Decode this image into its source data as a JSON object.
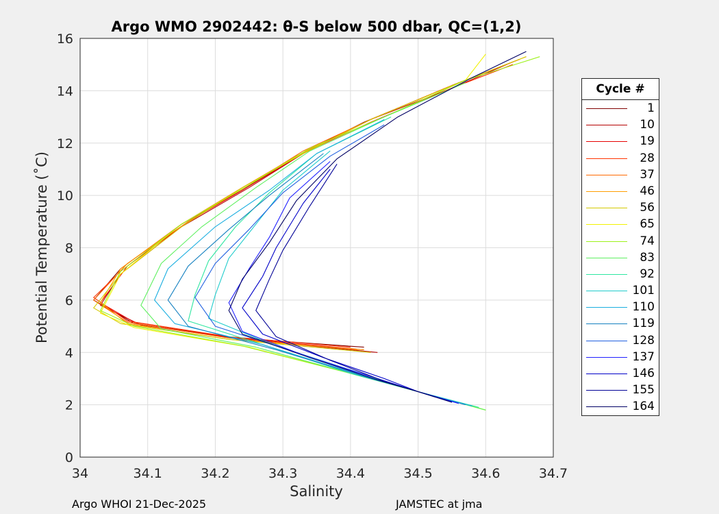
{
  "chart_data": {
    "type": "line",
    "title": "Argo WMO 2902442: θ-S below 500 dbar,  QC=(1,2)",
    "xlabel": "Salinity",
    "ylabel": "Potential Temperature (˚C)",
    "xlim": [
      34,
      34.7
    ],
    "ylim": [
      0,
      16
    ],
    "xticks": [
      "34",
      "34.1",
      "34.2",
      "34.3",
      "34.4",
      "34.5",
      "34.6",
      "34.7"
    ],
    "yticks": [
      "0",
      "2",
      "4",
      "6",
      "8",
      "10",
      "12",
      "14",
      "16"
    ],
    "grid": true,
    "legend_title": "Cycle #",
    "legend_position": "right",
    "series": [
      {
        "name": "1",
        "color": "#800000",
        "points": [
          [
            34.42,
            4.2
          ],
          [
            34.23,
            4.55
          ],
          [
            34.08,
            5.1
          ],
          [
            34.02,
            6.0
          ],
          [
            34.06,
            7.2
          ],
          [
            34.15,
            8.9
          ],
          [
            34.24,
            10.2
          ],
          [
            34.32,
            11.5
          ],
          [
            34.42,
            12.8
          ],
          [
            34.55,
            14.2
          ],
          [
            34.65,
            15.2
          ]
        ]
      },
      {
        "name": "10",
        "color": "#b40000",
        "points": [
          [
            34.44,
            4.0
          ],
          [
            34.24,
            4.5
          ],
          [
            34.09,
            5.05
          ],
          [
            34.03,
            5.8
          ],
          [
            34.06,
            7.0
          ],
          [
            34.15,
            8.8
          ],
          [
            34.25,
            10.3
          ],
          [
            34.33,
            11.6
          ],
          [
            34.43,
            12.9
          ],
          [
            34.55,
            14.1
          ],
          [
            34.64,
            15.1
          ]
        ]
      },
      {
        "name": "19",
        "color": "#e60000",
        "points": [
          [
            34.42,
            4.1
          ],
          [
            34.23,
            4.55
          ],
          [
            34.08,
            5.15
          ],
          [
            34.03,
            5.9
          ],
          [
            34.07,
            7.3
          ],
          [
            34.16,
            9.0
          ],
          [
            34.24,
            10.2
          ],
          [
            34.33,
            11.6
          ],
          [
            34.43,
            12.9
          ],
          [
            34.55,
            14.2
          ],
          [
            34.65,
            15.2
          ]
        ]
      },
      {
        "name": "28",
        "color": "#ff3300",
        "points": [
          [
            34.4,
            4.2
          ],
          [
            34.22,
            4.6
          ],
          [
            34.07,
            5.2
          ],
          [
            34.02,
            6.1
          ],
          [
            34.06,
            7.1
          ],
          [
            34.15,
            8.9
          ],
          [
            34.24,
            10.3
          ],
          [
            34.32,
            11.5
          ],
          [
            34.43,
            12.8
          ],
          [
            34.55,
            14.1
          ],
          [
            34.64,
            15.0
          ]
        ]
      },
      {
        "name": "37",
        "color": "#ff6a00",
        "points": [
          [
            34.41,
            4.1
          ],
          [
            34.22,
            4.55
          ],
          [
            34.07,
            5.15
          ],
          [
            34.02,
            6.0
          ],
          [
            34.07,
            7.4
          ],
          [
            34.16,
            9.0
          ],
          [
            34.25,
            10.4
          ],
          [
            34.33,
            11.7
          ],
          [
            34.43,
            12.9
          ],
          [
            34.55,
            14.2
          ],
          [
            34.65,
            15.2
          ]
        ]
      },
      {
        "name": "46",
        "color": "#ff9d00",
        "points": [
          [
            34.42,
            4.1
          ],
          [
            34.22,
            4.5
          ],
          [
            34.07,
            5.1
          ],
          [
            34.03,
            5.9
          ],
          [
            34.06,
            7.2
          ],
          [
            34.15,
            8.9
          ],
          [
            34.24,
            10.3
          ],
          [
            34.32,
            11.5
          ],
          [
            34.43,
            12.9
          ],
          [
            34.56,
            14.3
          ],
          [
            34.66,
            15.3
          ]
        ]
      },
      {
        "name": "56",
        "color": "#d4c900",
        "points": [
          [
            34.43,
            4.0
          ],
          [
            34.22,
            4.5
          ],
          [
            34.06,
            5.1
          ],
          [
            34.02,
            5.7
          ],
          [
            34.06,
            7.0
          ],
          [
            34.15,
            8.8
          ],
          [
            34.24,
            10.3
          ],
          [
            34.33,
            11.6
          ],
          [
            34.43,
            12.9
          ],
          [
            34.56,
            14.3
          ],
          [
            34.66,
            15.3
          ]
        ]
      },
      {
        "name": "65",
        "color": "#f2f200",
        "points": [
          [
            34.6,
            1.8
          ],
          [
            34.5,
            2.5
          ],
          [
            34.4,
            3.2
          ],
          [
            34.25,
            4.2
          ],
          [
            34.08,
            4.95
          ],
          [
            34.03,
            5.5
          ],
          [
            34.06,
            7.0
          ],
          [
            34.15,
            8.9
          ],
          [
            34.25,
            10.4
          ],
          [
            34.34,
            11.8
          ],
          [
            34.45,
            13.0
          ],
          [
            34.57,
            14.4
          ],
          [
            34.6,
            15.4
          ]
        ]
      },
      {
        "name": "74",
        "color": "#9cf21a",
        "points": [
          [
            34.6,
            1.8
          ],
          [
            34.5,
            2.5
          ],
          [
            34.4,
            3.2
          ],
          [
            34.24,
            4.25
          ],
          [
            34.08,
            5.0
          ],
          [
            34.03,
            5.6
          ],
          [
            34.06,
            7.1
          ],
          [
            34.15,
            8.9
          ],
          [
            34.25,
            10.4
          ],
          [
            34.34,
            11.8
          ],
          [
            34.45,
            13.0
          ],
          [
            34.57,
            14.4
          ],
          [
            34.68,
            15.3
          ]
        ]
      },
      {
        "name": "83",
        "color": "#5ff060",
        "points": [
          [
            34.6,
            1.8
          ],
          [
            34.5,
            2.5
          ],
          [
            34.4,
            3.2
          ],
          [
            34.26,
            4.2
          ],
          [
            34.12,
            4.9
          ],
          [
            34.09,
            5.8
          ],
          [
            34.12,
            7.4
          ],
          [
            34.18,
            8.8
          ],
          [
            34.26,
            10.3
          ],
          [
            34.34,
            11.7
          ],
          [
            34.45,
            13.0
          ],
          [
            34.57,
            14.3
          ]
        ]
      },
      {
        "name": "92",
        "color": "#2ee6a0",
        "points": [
          [
            34.59,
            1.9
          ],
          [
            34.5,
            2.5
          ],
          [
            34.4,
            3.2
          ],
          [
            34.27,
            4.3
          ],
          [
            34.16,
            5.2
          ],
          [
            34.17,
            6.2
          ],
          [
            34.19,
            7.5
          ],
          [
            34.23,
            8.8
          ],
          [
            34.28,
            10.1
          ],
          [
            34.35,
            11.6
          ],
          [
            34.46,
            13.0
          ]
        ]
      },
      {
        "name": "101",
        "color": "#20cccc",
        "points": [
          [
            34.58,
            1.95
          ],
          [
            34.5,
            2.5
          ],
          [
            34.41,
            3.2
          ],
          [
            34.28,
            4.35
          ],
          [
            34.19,
            5.3
          ],
          [
            34.2,
            6.2
          ],
          [
            34.22,
            7.6
          ],
          [
            34.26,
            8.9
          ],
          [
            34.3,
            10.2
          ],
          [
            34.37,
            11.7
          ]
        ]
      },
      {
        "name": "110",
        "color": "#1aaee0",
        "points": [
          [
            34.58,
            1.95
          ],
          [
            34.5,
            2.5
          ],
          [
            34.42,
            3.1
          ],
          [
            34.27,
            4.3
          ],
          [
            34.14,
            5.1
          ],
          [
            34.11,
            6.0
          ],
          [
            34.13,
            7.2
          ],
          [
            34.2,
            8.8
          ],
          [
            34.28,
            10.2
          ],
          [
            34.35,
            11.6
          ],
          [
            34.45,
            12.9
          ]
        ]
      },
      {
        "name": "119",
        "color": "#1480c0",
        "points": [
          [
            34.57,
            2.0
          ],
          [
            34.5,
            2.5
          ],
          [
            34.43,
            3.0
          ],
          [
            34.29,
            4.1
          ],
          [
            34.16,
            5.0
          ],
          [
            34.13,
            6.0
          ],
          [
            34.16,
            7.3
          ],
          [
            34.22,
            8.7
          ],
          [
            34.28,
            10.0
          ],
          [
            34.36,
            11.6
          ]
        ]
      },
      {
        "name": "128",
        "color": "#2060e0",
        "points": [
          [
            34.56,
            2.05
          ],
          [
            34.5,
            2.5
          ],
          [
            34.44,
            3.0
          ],
          [
            34.32,
            4.0
          ],
          [
            34.2,
            5.0
          ],
          [
            34.17,
            6.1
          ],
          [
            34.2,
            7.4
          ],
          [
            34.25,
            8.7
          ],
          [
            34.3,
            10.1
          ],
          [
            34.37,
            11.5
          ],
          [
            34.45,
            12.7
          ]
        ]
      },
      {
        "name": "137",
        "color": "#2020ff",
        "points": [
          [
            34.56,
            2.05
          ],
          [
            34.5,
            2.5
          ],
          [
            34.44,
            3.0
          ],
          [
            34.34,
            3.8
          ],
          [
            34.24,
            4.8
          ],
          [
            34.22,
            5.9
          ],
          [
            34.25,
            7.2
          ],
          [
            34.28,
            8.4
          ],
          [
            34.31,
            9.9
          ],
          [
            34.37,
            11.3
          ]
        ]
      },
      {
        "name": "146",
        "color": "#0000c8",
        "points": [
          [
            34.55,
            2.1
          ],
          [
            34.5,
            2.5
          ],
          [
            34.45,
            3.0
          ],
          [
            34.36,
            3.8
          ],
          [
            34.27,
            4.7
          ],
          [
            34.24,
            5.7
          ],
          [
            34.27,
            6.9
          ],
          [
            34.29,
            8.0
          ],
          [
            34.33,
            9.7
          ],
          [
            34.37,
            11.0
          ]
        ]
      },
      {
        "name": "155",
        "color": "#000096",
        "points": [
          [
            34.55,
            2.1
          ],
          [
            34.5,
            2.5
          ],
          [
            34.45,
            2.9
          ],
          [
            34.37,
            3.7
          ],
          [
            34.29,
            4.6
          ],
          [
            34.26,
            5.6
          ],
          [
            34.28,
            6.8
          ],
          [
            34.3,
            7.9
          ],
          [
            34.34,
            9.6
          ],
          [
            34.38,
            11.2
          ]
        ]
      },
      {
        "name": "164",
        "color": "#000064",
        "points": [
          [
            34.55,
            2.1
          ],
          [
            34.5,
            2.5
          ],
          [
            34.44,
            2.95
          ],
          [
            34.34,
            3.8
          ],
          [
            34.24,
            4.7
          ],
          [
            34.22,
            5.6
          ],
          [
            34.24,
            6.8
          ],
          [
            34.28,
            8.2
          ],
          [
            34.32,
            9.8
          ],
          [
            34.38,
            11.4
          ],
          [
            34.47,
            13.0
          ],
          [
            34.58,
            14.5
          ],
          [
            34.66,
            15.5
          ]
        ]
      }
    ]
  },
  "footer": {
    "left": "Argo WHOI 21-Dec-2025",
    "right": "JAMSTEC at jma"
  }
}
